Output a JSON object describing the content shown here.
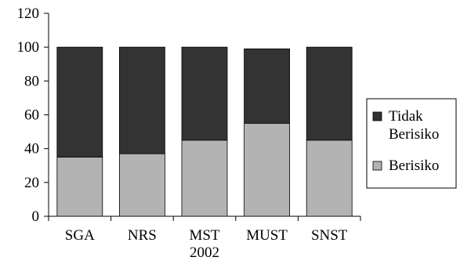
{
  "chart_data": {
    "type": "bar",
    "stacked": true,
    "title": "",
    "xlabel": "",
    "ylabel": "",
    "categories": [
      [
        "SGA"
      ],
      [
        "NRS"
      ],
      [
        "MST",
        "2002"
      ],
      [
        "MUST"
      ],
      [
        "SNST"
      ]
    ],
    "series": [
      {
        "name": "Berisiko",
        "values": [
          35,
          37,
          45,
          55,
          45
        ],
        "color": "#b3b3b3"
      },
      {
        "name": "Tidak Berisiko",
        "values": [
          65,
          63,
          55,
          44,
          55
        ],
        "color": "#333333"
      }
    ],
    "ylim": [
      0,
      120
    ],
    "yticks": [
      0,
      20,
      40,
      60,
      80,
      100,
      120
    ],
    "legend": {
      "position": "right",
      "items": [
        {
          "series": "Tidak Berisiko",
          "lines": [
            "Tidak",
            "Berisiko"
          ],
          "color": "#333333"
        },
        {
          "series": "Berisiko",
          "lines": [
            "Berisiko"
          ],
          "color": "#b3b3b3"
        }
      ]
    },
    "grid": false
  }
}
